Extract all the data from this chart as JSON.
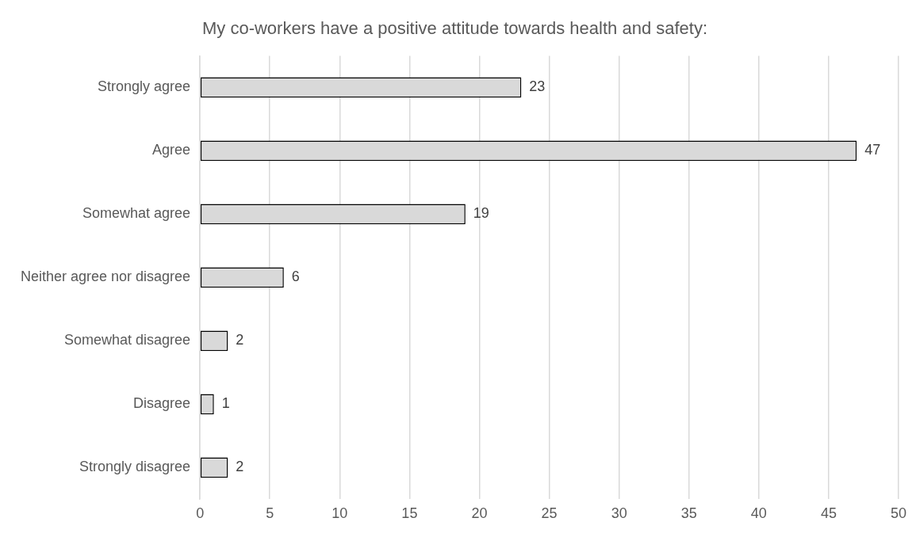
{
  "chart_data": {
    "type": "bar",
    "orientation": "horizontal",
    "title": "My co-workers have a positive attitude towards health and safety:",
    "categories": [
      "Strongly agree",
      "Agree",
      "Somewhat agree",
      "Neither agree nor disagree",
      "Somewhat disagree",
      "Disagree",
      "Strongly disagree"
    ],
    "values": [
      23,
      47,
      19,
      6,
      2,
      1,
      2
    ],
    "color": "#d9d9d9",
    "xlim": [
      0,
      50
    ],
    "xticks": [
      0,
      5,
      10,
      15,
      20,
      25,
      30,
      35,
      40,
      45,
      50
    ],
    "grid": "x",
    "data_labels": true,
    "legend": false
  }
}
